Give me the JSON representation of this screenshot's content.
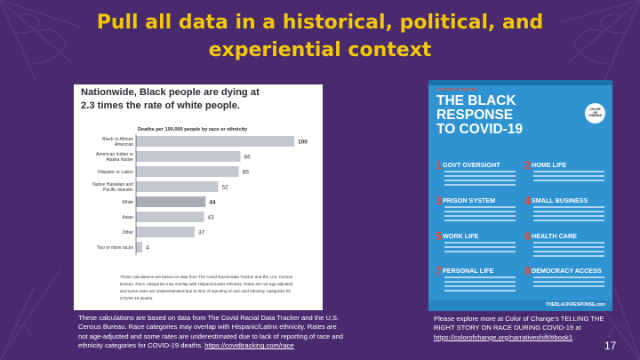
{
  "slide": {
    "title": "Pull all data in a historical, political, and experiential context",
    "number": "17",
    "colors": {
      "background": "#4a2a6e",
      "title": "#f2c800",
      "text": "#ffffff"
    }
  },
  "chart_card": {
    "headline_line1": "Nationwide, Black people are dying at",
    "headline_line2": "2.3 times the rate of white people.",
    "footnote_line1": "These calculations are based on data from The Covid Racial Data Tracker and the U.S. Census",
    "footnote_line2": "Bureau. Race categories may overlap with Hispanic/Latinx ethnicity. Rates are not age-adjusted",
    "footnote_line3": "and some rates are underestimated due to lack of reporting of race and ethnicity categories for",
    "footnote_line4": "COVID-19 deaths."
  },
  "chart_data": {
    "type": "bar",
    "orientation": "horizontal",
    "title": "Deaths per 100,000 people by race or ethnicity",
    "categories": [
      [
        "Black or African",
        "American"
      ],
      [
        "American Indian or",
        "Alaska Native"
      ],
      [
        "Hispanic or Latino"
      ],
      [
        "Native Hawaiian and",
        "Pacific Islander"
      ],
      [
        "White"
      ],
      [
        "Asian"
      ],
      [
        "Other"
      ],
      [
        "Two or more races"
      ]
    ],
    "values": [
      100,
      66,
      65,
      52,
      44,
      43,
      37,
      4
    ],
    "value_labels": [
      "100",
      "66",
      "65",
      "52",
      "44",
      "43",
      "37",
      "4"
    ],
    "xlim": [
      0,
      100
    ],
    "grid": false,
    "legend": "none",
    "bar_color": "#c4c7cf",
    "highlight_index": 4,
    "highlight_color": "#a9adb8"
  },
  "caption": {
    "text": "These calculations are based on data from The Covid Racial Data Tracker and the U.S. Census Bureau. Race categories may overlap with Hispanic/Latinx ethnicity. Rates are not age-adjusted and some rates are underestimated due to lack of reporting of race and ethnicity categories for COVID-19 deaths. ",
    "link": "https://covidtracking.com/race"
  },
  "report": {
    "brand": "COLOR OF CHANGE",
    "title_line1": "THE BLACK",
    "title_line2": "RESPONSE",
    "title_line3": "TO COVID-19",
    "logo_line1": "COLOR",
    "logo_line2": "OF",
    "logo_line3": "CHANGE",
    "sections": [
      {
        "num": "1",
        "title": "GOVT OVERSIGHT"
      },
      {
        "num": "2",
        "title": "HOME LIFE"
      },
      {
        "num": "3",
        "title": "PRISON SYSTEM"
      },
      {
        "num": "4",
        "title": "SMALL BUSINESS"
      },
      {
        "num": "5",
        "title": "WORK LIFE"
      },
      {
        "num": "6",
        "title": "HEALTH CARE"
      },
      {
        "num": "7",
        "title": "PERSONAL LIFE"
      },
      {
        "num": "8",
        "title": "DEMOCRACY ACCESS"
      }
    ],
    "site": "THEBLACKRESPONSE.com",
    "colors": {
      "cover": "#2f93d2",
      "accent": "#e64a2e"
    }
  },
  "note": {
    "text": "Please explore more at Color of Change's TELLING THE RIGHT STORY ON RACE DURING COVID-19 at",
    "link": "https://colorofchange.org/narrativeshift/#book1"
  }
}
